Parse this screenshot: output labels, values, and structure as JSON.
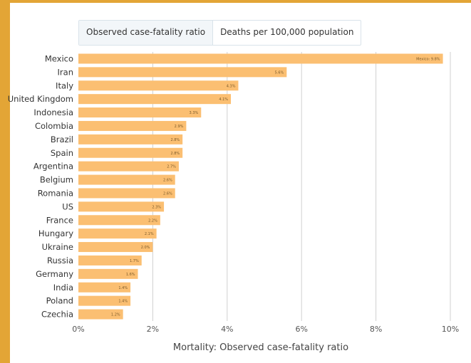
{
  "tabs": [
    {
      "label": "Observed case-fatality ratio",
      "active": true
    },
    {
      "label": "Deaths per 100,000 population",
      "active": false
    }
  ],
  "colors": {
    "bar": "#fbbf72",
    "frame": "#e3a536",
    "grid": "#d0d0d0"
  },
  "chart_data": {
    "type": "bar",
    "orientation": "horizontal",
    "categories": [
      "Mexico",
      "Iran",
      "Italy",
      "United Kingdom",
      "Indonesia",
      "Colombia",
      "Brazil",
      "Spain",
      "Argentina",
      "Belgium",
      "Romania",
      "US",
      "France",
      "Hungary",
      "Ukraine",
      "Russia",
      "Germany",
      "India",
      "Poland",
      "Czechia"
    ],
    "values": [
      9.8,
      5.6,
      4.3,
      4.1,
      3.3,
      2.9,
      2.8,
      2.8,
      2.7,
      2.6,
      2.6,
      2.3,
      2.2,
      2.1,
      2.0,
      1.7,
      1.6,
      1.4,
      1.4,
      1.2
    ],
    "bar_labels": [
      "Mexico: 9.8%",
      "5.6%",
      "4.3%",
      "4.1%",
      "3.3%",
      "2.9%",
      "2.8%",
      "2.8%",
      "2.7%",
      "2.6%",
      "2.6%",
      "2.3%",
      "2.2%",
      "2.1%",
      "2.0%",
      "1.7%",
      "1.6%",
      "1.4%",
      "1.4%",
      "1.2%"
    ],
    "xticks": [
      "0%",
      "2%",
      "4%",
      "6%",
      "8%",
      "10%"
    ],
    "xtick_values": [
      0,
      2,
      4,
      6,
      8,
      10
    ],
    "xlim": [
      0,
      10
    ],
    "xlabel": "Mortality: Observed case-fatality ratio",
    "grid": true
  }
}
